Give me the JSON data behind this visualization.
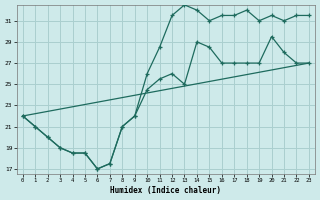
{
  "xlabel": "Humidex (Indice chaleur)",
  "bg_color": "#ceeaea",
  "grid_color": "#aacfcf",
  "line_color": "#1e6b5e",
  "xlim": [
    -0.5,
    23.5
  ],
  "ylim": [
    16.5,
    32.5
  ],
  "xticks": [
    0,
    1,
    2,
    3,
    4,
    5,
    6,
    7,
    8,
    9,
    10,
    11,
    12,
    13,
    14,
    15,
    16,
    17,
    18,
    19,
    20,
    21,
    22,
    23
  ],
  "yticks": [
    17,
    19,
    21,
    23,
    25,
    27,
    29,
    31
  ],
  "line1_x": [
    0,
    1,
    2,
    3,
    4,
    5,
    6,
    7,
    8,
    9,
    10,
    11,
    12,
    13,
    14,
    15,
    16,
    17,
    18,
    19,
    20,
    21,
    22,
    23
  ],
  "line1_y": [
    22,
    21,
    20,
    19,
    18.5,
    18.5,
    17,
    17.5,
    21,
    22,
    26,
    28.5,
    31.5,
    32.5,
    32,
    31,
    31.5,
    31.5,
    32,
    31,
    31.5,
    31,
    31.5,
    31.5
  ],
  "line2_x": [
    0,
    1,
    2,
    3,
    4,
    5,
    6,
    7,
    8,
    9,
    10,
    11,
    12,
    13,
    14,
    15,
    16,
    17,
    18,
    19,
    20,
    21,
    22,
    23
  ],
  "line2_y": [
    22,
    21,
    20,
    19,
    18.5,
    18.5,
    17,
    17.5,
    21,
    22,
    24.5,
    25.5,
    26,
    25,
    29,
    28.5,
    27,
    27,
    27,
    27,
    29.5,
    28,
    27,
    27
  ],
  "line3_x": [
    0,
    23
  ],
  "line3_y": [
    22,
    27
  ]
}
